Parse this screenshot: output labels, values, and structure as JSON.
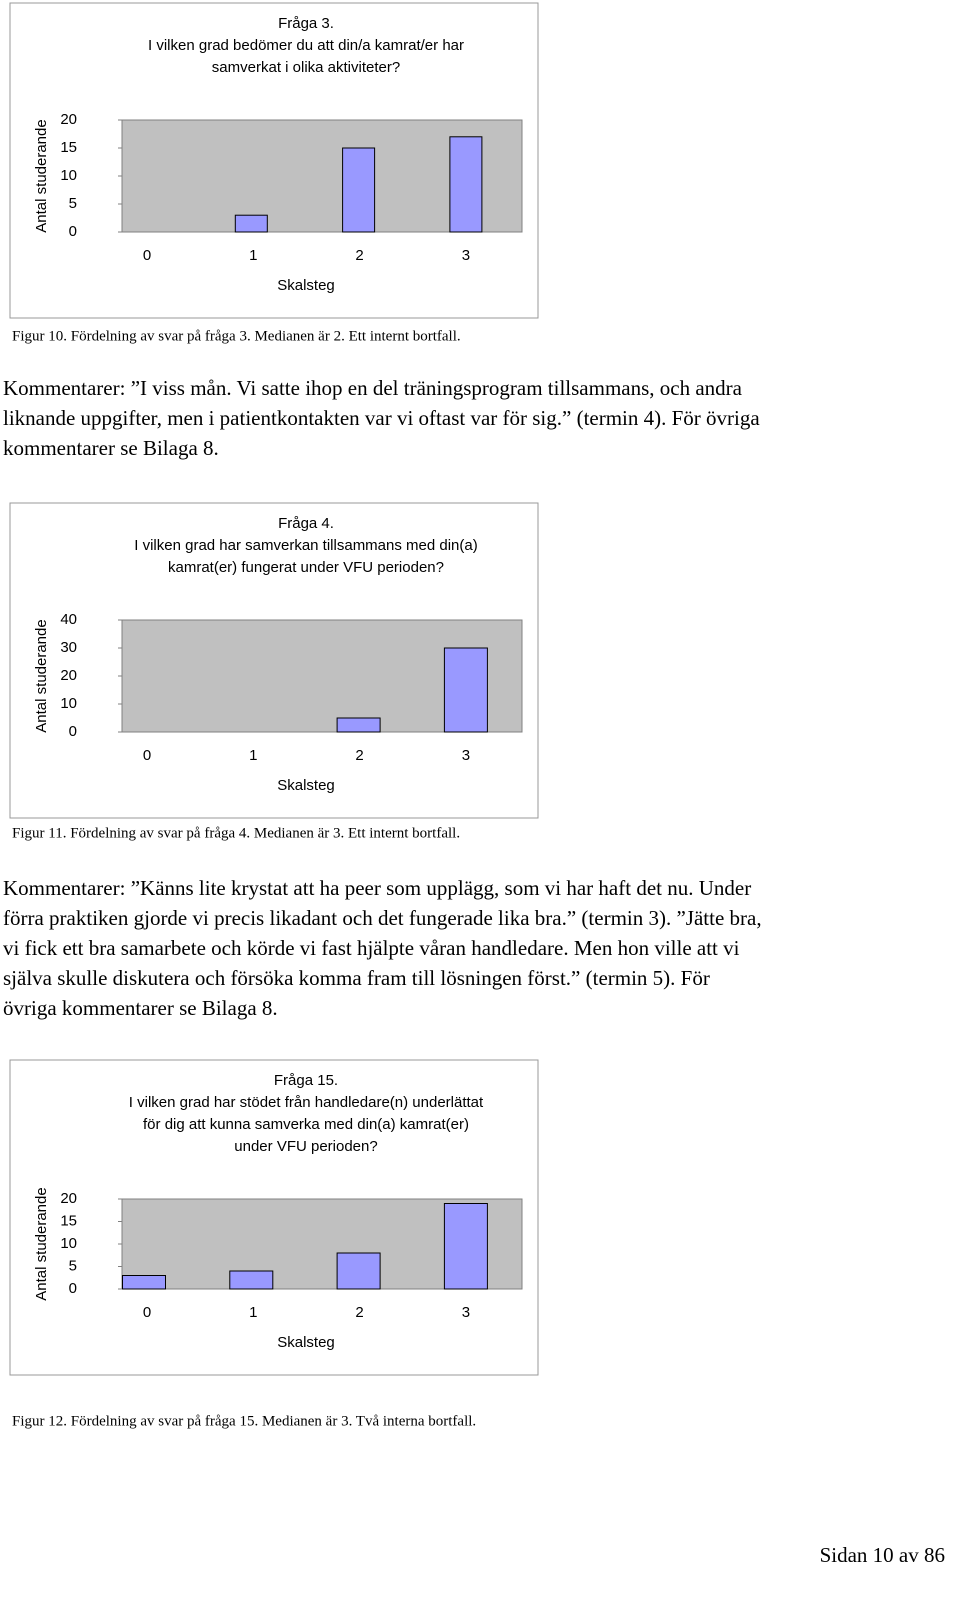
{
  "chart_data": [
    {
      "type": "bar",
      "title": [
        "Fråga 3.",
        "I vilken grad bedömer du att din/a kamrat/er har",
        "samverkat i olika aktiviteter?"
      ],
      "categories": [
        "0",
        "1",
        "2",
        "3"
      ],
      "values": [
        0,
        3,
        15,
        17
      ],
      "color": "#9999ff",
      "plot_color": "#c0c0c0",
      "ylim": [
        0,
        20
      ],
      "yticks": [
        0,
        5,
        10,
        15,
        20
      ],
      "xlabel": "Skalsteg",
      "ylabel": "Antal studerande"
    },
    {
      "type": "bar",
      "title": [
        "Fråga 4.",
        "I vilken grad har samverkan tillsammans med din(a)",
        "kamrat(er) fungerat under VFU perioden?"
      ],
      "categories": [
        "0",
        "1",
        "2",
        "3"
      ],
      "values": [
        0,
        0,
        5,
        30
      ],
      "color": "#9999ff",
      "plot_color": "#c0c0c0",
      "ylim": [
        0,
        40
      ],
      "yticks": [
        0,
        10,
        20,
        30,
        40
      ],
      "xlabel": "Skalsteg",
      "ylabel": "Antal studerande"
    },
    {
      "type": "bar",
      "title": [
        "Fråga 15.",
        "I vilken grad har stödet från handledare(n) underlättat",
        "för dig att kunna samverka med din(a) kamrat(er)",
        "under VFU perioden?"
      ],
      "categories": [
        "0",
        "1",
        "2",
        "3"
      ],
      "values": [
        3,
        4,
        8,
        19
      ],
      "color": "#9999ff",
      "plot_color": "#c0c0c0",
      "ylim": [
        0,
        20
      ],
      "yticks": [
        0,
        5,
        10,
        15,
        20
      ],
      "xlabel": "Skalsteg",
      "ylabel": "Antal studerande"
    }
  ],
  "captions": [
    "Figur 10. Fördelning av svar på fråga 3. Medianen är 2. Ett internt bortfall.",
    "Figur 11. Fördelning av svar på fråga 4. Medianen är 3. Ett internt bortfall.",
    "Figur 12. Fördelning av svar på fråga 15. Medianen är 3. Två interna bortfall."
  ],
  "comments": [
    [
      "Kommentarer: ”I viss mån. Vi satte ihop en del träningsprogram tillsammans, och andra",
      "liknande uppgifter, men i patientkontakten var vi oftast var för sig.” (termin 4). För övriga",
      "kommentarer se Bilaga 8."
    ],
    [
      "Kommentarer: ”Känns lite krystat att ha peer som upplägg, som vi har haft det nu. Under",
      "förra praktiken gjorde vi precis likadant och det fungerade lika bra.” (termin 3). ”Jätte bra,",
      "vi fick ett bra samarbete och körde vi fast hjälpte våran handledare. Men hon ville att vi",
      "själva skulle diskutera och försöka komma fram till lösningen först.” (termin 5). För",
      "övriga kommentarer se Bilaga 8."
    ]
  ],
  "footer": "Sidan 10 av 86"
}
